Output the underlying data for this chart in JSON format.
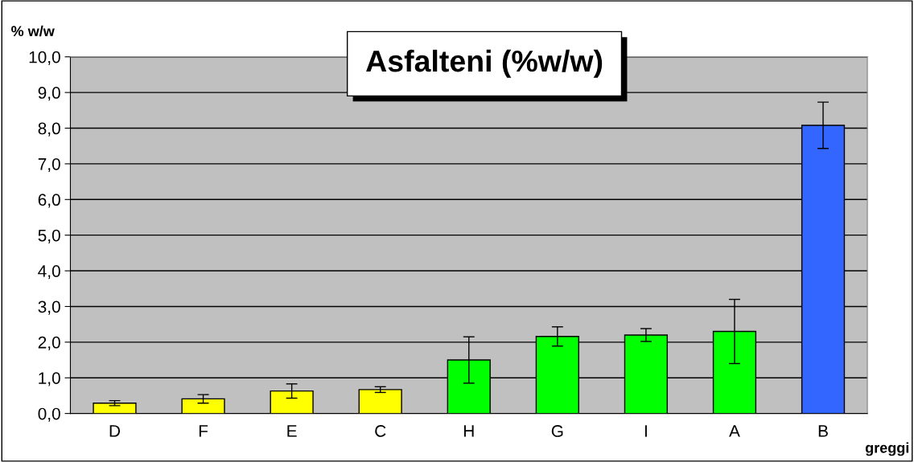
{
  "chart_data": {
    "type": "bar",
    "title": "Asfalteni (%w/w)",
    "ylabel": "% w/w",
    "xlabel": "greggi",
    "categories": [
      "D",
      "F",
      "E",
      "C",
      "H",
      "G",
      "I",
      "A",
      "B"
    ],
    "values": [
      0.29,
      0.41,
      0.63,
      0.67,
      1.5,
      2.16,
      2.2,
      2.3,
      8.08
    ],
    "errors": [
      0.07,
      0.12,
      0.2,
      0.08,
      0.65,
      0.27,
      0.18,
      0.9,
      0.65
    ],
    "colors": [
      "#ffff00",
      "#ffff00",
      "#ffff00",
      "#ffff00",
      "#00ff00",
      "#00ff00",
      "#00ff00",
      "#00ff00",
      "#3366ff"
    ],
    "ylim": [
      0,
      10
    ],
    "yticks": [
      {
        "value": 0,
        "label": "0,0"
      },
      {
        "value": 1,
        "label": "1,0"
      },
      {
        "value": 2,
        "label": "2,0"
      },
      {
        "value": 3,
        "label": "3,0"
      },
      {
        "value": 4,
        "label": "4,0"
      },
      {
        "value": 5,
        "label": "5,0"
      },
      {
        "value": 6,
        "label": "6,0"
      },
      {
        "value": 7,
        "label": "7,0"
      },
      {
        "value": 8,
        "label": "8,0"
      },
      {
        "value": 9,
        "label": "9,0"
      },
      {
        "value": 10,
        "label": "10,0"
      }
    ],
    "grid": "y",
    "legend": false
  }
}
